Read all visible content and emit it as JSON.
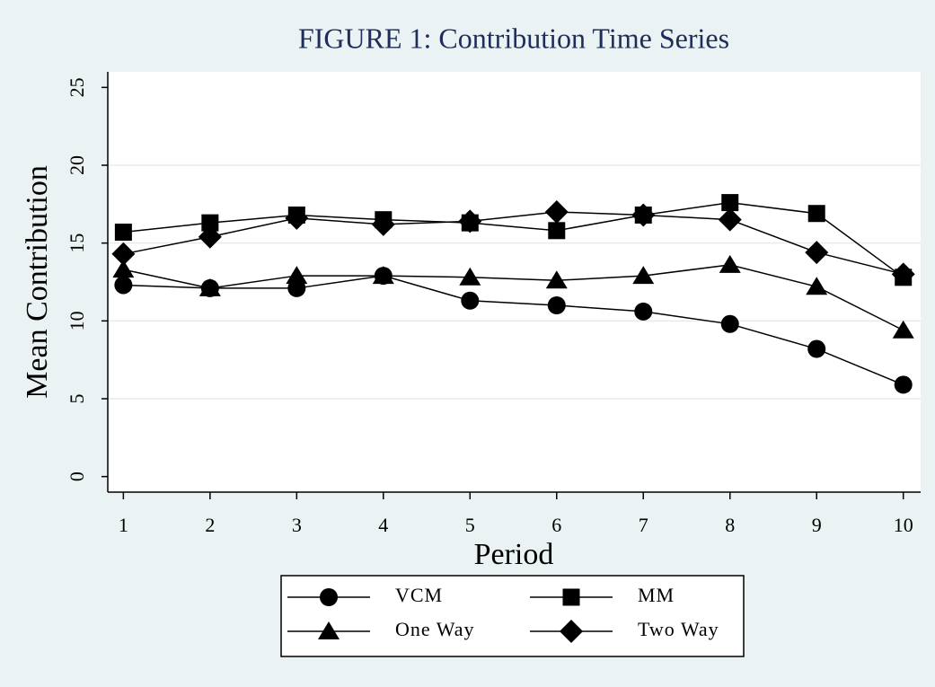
{
  "chart_data": {
    "type": "line",
    "title": "FIGURE 1: Contribution Time Series",
    "x_label": "Period",
    "y_label": "Mean Contribution",
    "x": [
      1,
      2,
      3,
      4,
      5,
      6,
      7,
      8,
      9,
      10
    ],
    "xlim": [
      0.82,
      10.2
    ],
    "xticks": [
      1,
      2,
      3,
      4,
      5,
      6,
      7,
      8,
      9,
      10
    ],
    "ylim": [
      -1,
      26
    ],
    "yticks": [
      0,
      5,
      10,
      15,
      20,
      25
    ],
    "grid": true,
    "legend": "bottom",
    "series": [
      {
        "name": "VCM",
        "color": "#000000",
        "marker": "circle",
        "values": [
          12.3,
          12.1,
          12.1,
          12.9,
          11.3,
          11.0,
          10.6,
          9.8,
          8.2,
          5.9
        ]
      },
      {
        "name": "MM",
        "color": "#000000",
        "marker": "square",
        "values": [
          15.7,
          16.3,
          16.8,
          16.5,
          16.3,
          15.8,
          16.8,
          17.6,
          16.9,
          12.8
        ]
      },
      {
        "name": "One Way",
        "color": "#000000",
        "marker": "triangle",
        "values": [
          13.3,
          12.1,
          12.9,
          12.9,
          12.8,
          12.6,
          12.9,
          13.6,
          12.2,
          9.4
        ]
      },
      {
        "name": "Two Way",
        "color": "#000000",
        "marker": "diamond",
        "values": [
          14.3,
          15.4,
          16.6,
          16.2,
          16.4,
          17.0,
          16.8,
          16.5,
          14.4,
          13.0
        ]
      }
    ]
  }
}
